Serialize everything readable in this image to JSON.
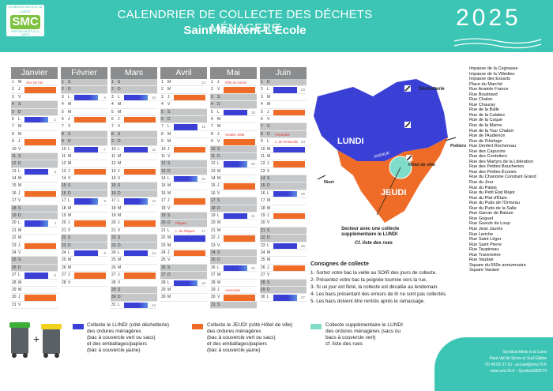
{
  "header": {
    "logo_top": "SYNDICAT MIXTE À LA CARTE",
    "logo_main": "SMC",
    "logo_bottom": "SERVICE MIXTE À LA CARTE",
    "title": "CALENDRIER DE COLLECTE DES DÉCHETS MÉNAGERS",
    "subtitle": "Saint-Maixent-L'École",
    "year": "2025"
  },
  "colors": {
    "teal": "#3cc5b4",
    "lundi": "#3a3fd6",
    "jeudi": "#ef6c28",
    "weekend": "#c4c6c8",
    "header_grey": "#8a8c8e"
  },
  "months": [
    {
      "name": "Janvier",
      "left": 14,
      "days": [
        {
          "n": "1",
          "d": "M",
          "c": "note",
          "note": "Jour de l'an"
        },
        {
          "n": "2",
          "d": "J",
          "c": "orange"
        },
        {
          "n": "3",
          "d": "V"
        },
        {
          "n": "4",
          "d": "S",
          "c": "weekend"
        },
        {
          "n": "5",
          "d": "D",
          "c": "weekend"
        },
        {
          "n": "6",
          "d": "L",
          "c": "both",
          "wk": "2"
        },
        {
          "n": "7",
          "d": "M"
        },
        {
          "n": "8",
          "d": "M"
        },
        {
          "n": "9",
          "d": "J",
          "c": "orange"
        },
        {
          "n": "10",
          "d": "V"
        },
        {
          "n": "11",
          "d": "S",
          "c": "weekend"
        },
        {
          "n": "12",
          "d": "D",
          "c": "weekend"
        },
        {
          "n": "13",
          "d": "L",
          "c": "blue",
          "wk": "3"
        },
        {
          "n": "14",
          "d": "M"
        },
        {
          "n": "15",
          "d": "M"
        },
        {
          "n": "16",
          "d": "J",
          "c": "orange"
        },
        {
          "n": "17",
          "d": "V"
        },
        {
          "n": "18",
          "d": "S",
          "c": "weekend"
        },
        {
          "n": "19",
          "d": "D",
          "c": "weekend"
        },
        {
          "n": "20",
          "d": "L",
          "c": "both",
          "wk": "4"
        },
        {
          "n": "21",
          "d": "M"
        },
        {
          "n": "22",
          "d": "M"
        },
        {
          "n": "23",
          "d": "J",
          "c": "orange"
        },
        {
          "n": "24",
          "d": "V"
        },
        {
          "n": "25",
          "d": "S",
          "c": "weekend"
        },
        {
          "n": "26",
          "d": "D",
          "c": "weekend"
        },
        {
          "n": "27",
          "d": "L",
          "c": "blue",
          "wk": "5"
        },
        {
          "n": "28",
          "d": "M"
        },
        {
          "n": "29",
          "d": "M"
        },
        {
          "n": "30",
          "d": "J",
          "c": "orange"
        },
        {
          "n": "31",
          "d": "V"
        }
      ]
    },
    {
      "name": "Février",
      "left": 77,
      "days": [
        {
          "n": "1",
          "d": "S",
          "c": "weekend"
        },
        {
          "n": "2",
          "d": "D",
          "c": "weekend"
        },
        {
          "n": "3",
          "d": "L",
          "c": "both",
          "wk": "6"
        },
        {
          "n": "4",
          "d": "M"
        },
        {
          "n": "5",
          "d": "M"
        },
        {
          "n": "6",
          "d": "J",
          "c": "orange"
        },
        {
          "n": "7",
          "d": "V"
        },
        {
          "n": "8",
          "d": "S",
          "c": "weekend"
        },
        {
          "n": "9",
          "d": "D",
          "c": "weekend"
        },
        {
          "n": "10",
          "d": "L",
          "c": "blue",
          "wk": "7"
        },
        {
          "n": "11",
          "d": "M"
        },
        {
          "n": "12",
          "d": "M"
        },
        {
          "n": "13",
          "d": "J",
          "c": "orange"
        },
        {
          "n": "14",
          "d": "V"
        },
        {
          "n": "15",
          "d": "S",
          "c": "weekend"
        },
        {
          "n": "16",
          "d": "D",
          "c": "weekend"
        },
        {
          "n": "17",
          "d": "L",
          "c": "both",
          "wk": "8"
        },
        {
          "n": "18",
          "d": "M"
        },
        {
          "n": "19",
          "d": "M"
        },
        {
          "n": "20",
          "d": "J",
          "c": "orange"
        },
        {
          "n": "21",
          "d": "V"
        },
        {
          "n": "22",
          "d": "S",
          "c": "weekend"
        },
        {
          "n": "23",
          "d": "D",
          "c": "weekend"
        },
        {
          "n": "24",
          "d": "L",
          "c": "blue",
          "wk": "9"
        },
        {
          "n": "25",
          "d": "M"
        },
        {
          "n": "26",
          "d": "M"
        },
        {
          "n": "27",
          "d": "J",
          "c": "orange"
        },
        {
          "n": "28",
          "d": "V"
        }
      ]
    },
    {
      "name": "Mars",
      "left": 140,
      "days": [
        {
          "n": "1",
          "d": "S",
          "c": "weekend"
        },
        {
          "n": "2",
          "d": "D",
          "c": "weekend"
        },
        {
          "n": "3",
          "d": "L",
          "c": "both",
          "wk": "10"
        },
        {
          "n": "4",
          "d": "M"
        },
        {
          "n": "5",
          "d": "M"
        },
        {
          "n": "6",
          "d": "J",
          "c": "orange"
        },
        {
          "n": "7",
          "d": "V"
        },
        {
          "n": "8",
          "d": "S",
          "c": "weekend"
        },
        {
          "n": "9",
          "d": "D",
          "c": "weekend"
        },
        {
          "n": "10",
          "d": "L",
          "c": "blue",
          "wk": "11"
        },
        {
          "n": "11",
          "d": "M"
        },
        {
          "n": "12",
          "d": "M"
        },
        {
          "n": "13",
          "d": "J",
          "c": "orange"
        },
        {
          "n": "14",
          "d": "V"
        },
        {
          "n": "15",
          "d": "S",
          "c": "weekend"
        },
        {
          "n": "16",
          "d": "D",
          "c": "weekend"
        },
        {
          "n": "17",
          "d": "L",
          "c": "both",
          "wk": "12"
        },
        {
          "n": "18",
          "d": "M"
        },
        {
          "n": "19",
          "d": "M"
        },
        {
          "n": "20",
          "d": "J",
          "c": "orange"
        },
        {
          "n": "21",
          "d": "V"
        },
        {
          "n": "22",
          "d": "S",
          "c": "weekend"
        },
        {
          "n": "23",
          "d": "D",
          "c": "weekend"
        },
        {
          "n": "24",
          "d": "L",
          "c": "blue",
          "wk": "13"
        },
        {
          "n": "25",
          "d": "M"
        },
        {
          "n": "26",
          "d": "M"
        },
        {
          "n": "27",
          "d": "J",
          "c": "orange"
        },
        {
          "n": "28",
          "d": "V"
        },
        {
          "n": "29",
          "d": "S",
          "c": "weekend"
        },
        {
          "n": "30",
          "d": "D",
          "c": "weekend"
        },
        {
          "n": "31",
          "d": "L",
          "c": "both",
          "wk": "14"
        }
      ]
    },
    {
      "name": "Avril",
      "left": 203,
      "days": [
        {
          "n": "1",
          "d": "M",
          "wk": "14"
        },
        {
          "n": "2",
          "d": "M"
        },
        {
          "n": "3",
          "d": "J",
          "c": "orange"
        },
        {
          "n": "4",
          "d": "V"
        },
        {
          "n": "5",
          "d": "S",
          "c": "weekend"
        },
        {
          "n": "6",
          "d": "D",
          "c": "weekend"
        },
        {
          "n": "7",
          "d": "L",
          "c": "blue",
          "wk": "15"
        },
        {
          "n": "8",
          "d": "M"
        },
        {
          "n": "9",
          "d": "M"
        },
        {
          "n": "10",
          "d": "J",
          "c": "orange"
        },
        {
          "n": "11",
          "d": "V"
        },
        {
          "n": "12",
          "d": "S",
          "c": "weekend"
        },
        {
          "n": "13",
          "d": "D",
          "c": "weekend"
        },
        {
          "n": "14",
          "d": "L",
          "c": "both",
          "wk": "16"
        },
        {
          "n": "15",
          "d": "M"
        },
        {
          "n": "16",
          "d": "M"
        },
        {
          "n": "17",
          "d": "J",
          "c": "orange"
        },
        {
          "n": "18",
          "d": "V"
        },
        {
          "n": "19",
          "d": "S",
          "c": "weekend"
        },
        {
          "n": "20",
          "d": "D",
          "c": "weekend",
          "note": "Pâques"
        },
        {
          "n": "21",
          "d": "L",
          "c": "note",
          "note": "L. de Pâques",
          "wk": "17"
        },
        {
          "n": "22",
          "d": "M",
          "c": "blue"
        },
        {
          "n": "23",
          "d": "M"
        },
        {
          "n": "24",
          "d": "J",
          "c": "orange"
        },
        {
          "n": "25",
          "d": "V"
        },
        {
          "n": "26",
          "d": "S",
          "c": "weekend"
        },
        {
          "n": "27",
          "d": "D",
          "c": "weekend"
        },
        {
          "n": "28",
          "d": "L",
          "c": "both",
          "wk": "18"
        },
        {
          "n": "29",
          "d": "M"
        },
        {
          "n": "30",
          "d": "M"
        }
      ]
    },
    {
      "name": "Mai",
      "left": 266,
      "days": [
        {
          "n": "1",
          "d": "J",
          "c": "note",
          "note": "Fête du travail"
        },
        {
          "n": "2",
          "d": "V",
          "c": "orange"
        },
        {
          "n": "3",
          "d": "S",
          "c": "weekend"
        },
        {
          "n": "4",
          "d": "D",
          "c": "weekend"
        },
        {
          "n": "5",
          "d": "L",
          "c": "blue",
          "wk": "19"
        },
        {
          "n": "6",
          "d": "M"
        },
        {
          "n": "7",
          "d": "M"
        },
        {
          "n": "8",
          "d": "J",
          "c": "note",
          "note": "Victoire 1945"
        },
        {
          "n": "9",
          "d": "V",
          "c": "orange"
        },
        {
          "n": "10",
          "d": "S",
          "c": "weekend"
        },
        {
          "n": "11",
          "d": "D",
          "c": "weekend"
        },
        {
          "n": "12",
          "d": "L",
          "c": "both",
          "wk": "20"
        },
        {
          "n": "13",
          "d": "M"
        },
        {
          "n": "14",
          "d": "M"
        },
        {
          "n": "15",
          "d": "J",
          "c": "orange"
        },
        {
          "n": "16",
          "d": "V"
        },
        {
          "n": "17",
          "d": "S",
          "c": "weekend"
        },
        {
          "n": "18",
          "d": "D",
          "c": "weekend"
        },
        {
          "n": "19",
          "d": "L",
          "c": "blue",
          "wk": "21"
        },
        {
          "n": "20",
          "d": "M"
        },
        {
          "n": "21",
          "d": "M"
        },
        {
          "n": "22",
          "d": "J",
          "c": "orange"
        },
        {
          "n": "23",
          "d": "V"
        },
        {
          "n": "24",
          "d": "S",
          "c": "weekend"
        },
        {
          "n": "25",
          "d": "D",
          "c": "weekend"
        },
        {
          "n": "26",
          "d": "L",
          "c": "both",
          "wk": "22"
        },
        {
          "n": "27",
          "d": "M"
        },
        {
          "n": "28",
          "d": "M"
        },
        {
          "n": "29",
          "d": "J",
          "c": "note",
          "note": "Ascension"
        },
        {
          "n": "30",
          "d": "V",
          "c": "orange"
        },
        {
          "n": "31",
          "d": "S",
          "c": "weekend"
        }
      ]
    },
    {
      "name": "Juin",
      "left": 329,
      "days": [
        {
          "n": "1",
          "d": "D",
          "c": "weekend"
        },
        {
          "n": "2",
          "d": "L",
          "c": "blue",
          "wk": "23"
        },
        {
          "n": "3",
          "d": "M"
        },
        {
          "n": "4",
          "d": "M"
        },
        {
          "n": "5",
          "d": "J",
          "c": "orange"
        },
        {
          "n": "6",
          "d": "V"
        },
        {
          "n": "7",
          "d": "S",
          "c": "weekend"
        },
        {
          "n": "8",
          "d": "D",
          "c": "weekend",
          "note": "Pentecôte"
        },
        {
          "n": "9",
          "d": "L",
          "c": "note",
          "note": "L. de Pentecôte",
          "wk": "24"
        },
        {
          "n": "10",
          "d": "M",
          "c": "blue"
        },
        {
          "n": "11",
          "d": "M"
        },
        {
          "n": "12",
          "d": "J",
          "c": "orange"
        },
        {
          "n": "13",
          "d": "V"
        },
        {
          "n": "14",
          "d": "S",
          "c": "weekend"
        },
        {
          "n": "15",
          "d": "D",
          "c": "weekend"
        },
        {
          "n": "16",
          "d": "L",
          "c": "both",
          "wk": "25"
        },
        {
          "n": "17",
          "d": "M"
        },
        {
          "n": "18",
          "d": "M"
        },
        {
          "n": "19",
          "d": "J",
          "c": "orange"
        },
        {
          "n": "20",
          "d": "V"
        },
        {
          "n": "21",
          "d": "S",
          "c": "weekend"
        },
        {
          "n": "22",
          "d": "D",
          "c": "weekend"
        },
        {
          "n": "23",
          "d": "L",
          "c": "blue",
          "wk": "26"
        },
        {
          "n": "24",
          "d": "M"
        },
        {
          "n": "25",
          "d": "M"
        },
        {
          "n": "26",
          "d": "J",
          "c": "orange"
        },
        {
          "n": "27",
          "d": "V"
        },
        {
          "n": "28",
          "d": "S",
          "c": "weekend"
        },
        {
          "n": "29",
          "d": "D",
          "c": "weekend"
        },
        {
          "n": "30",
          "d": "L",
          "c": "both",
          "wk": "27"
        }
      ]
    }
  ],
  "map": {
    "lundi": "LUNDI",
    "jeudi": "JEUDI",
    "decheterie": "Déchetterie",
    "hotel": "Hôtel de ville",
    "poitiers": "Poitiers",
    "niort": "Niort",
    "avenue": "AVENUE"
  },
  "map_notes": {
    "line1": "Secteur avec une collecte",
    "line2": "supplémentaire le LUNDI",
    "line3": "Cf. liste des rues"
  },
  "streets": [
    "Impasse de la Cognasse",
    "Impasse de la Villedieu",
    "Impasse des Essarts",
    "Place du Marché",
    "Rue Anatole France",
    "Rue Boutinard",
    "Rue Chalon",
    "Rue Chauray",
    "Rue de la Balle",
    "Rue de la Calabre",
    "Rue de la Coque",
    "Rue de la Marne",
    "Rue de la Tour Chabot",
    "Rue de l'Audience",
    "Rue de l'Horloge",
    "Rue Denfert Rochereau",
    "Rue des Capucins",
    "Rue des Cordeliers",
    "Rue des Martyrs de la Libération",
    "Rue des Petites Boucheries",
    "Rue des Petites Écuries",
    "Rue du Chanoine Constant Grand",
    "Rue du Jour",
    "Rue du Palais",
    "Rue du Petit État Major",
    "Rue du Plat d'Étain",
    "Rue du Puits de l'Ormeau",
    "Rue du Puits de la Salle",
    "Rue Garran de Balzan",
    "Rue Goguet",
    "Rue Gueule de Loup",
    "Rue Jean Jaurès",
    "Rue Leriche",
    "Rue Saint Léger",
    "Rue Saint Pierre",
    "Rue Taupineau",
    "Rue Traversière",
    "Rue Vaudair",
    "Square du 550e anniversaire",
    "Square Varaize"
  ],
  "consignes": {
    "title": "Consignes de collecte",
    "items": [
      "1- Sortez votre bac la veille au SOIR des jours de collecte.",
      "2- Présentez votre bac la poignée tournée vers la rue.",
      "3- Si un jour est férié, la collecte est décalée au lendemain.",
      "4- Les bacs présentant des erreurs de tri ne sont pas collectés.",
      "5- Les bacs doivent être rentrés après le ramassage."
    ]
  },
  "legend": {
    "lundi": [
      "Collecte le LUNDI (côté déchetterie)",
      "des ordures ménagères",
      "(bac à couvercle vert ou sacs)",
      "et des emballages/papiers",
      "(bac à couvercle jaune)"
    ],
    "jeudi": [
      "Collecte le JEUDI (côté Hôtel de ville)",
      "des ordures ménagères",
      "(bac à couvercle vert ou sacs)",
      "et des emballages/papiers",
      "(bac à couvercle jaune)"
    ],
    "supp": [
      "Collecte supplémentaire le LUNDI",
      "des ordures ménagères (sacs ou",
      "bacs à couvercle vert)",
      "cf. liste des rues"
    ]
  },
  "contact": [
    "Syndicat Mixte à la Carte",
    "Haut Val de Sèvre et Sud Gâtine",
    "05 49 05 37 10 - accueil@smc79.fr",
    "www.smc79.fr - SyndicatSMC79"
  ]
}
